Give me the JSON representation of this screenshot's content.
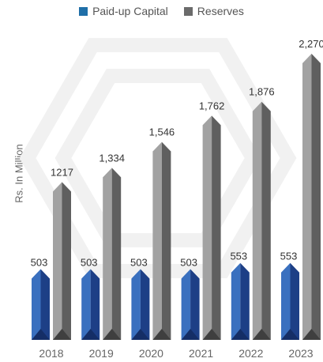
{
  "chart_data": {
    "type": "bar",
    "ylabel": "Rs. In Million",
    "categories": [
      "2018",
      "2019",
      "2020",
      "2021",
      "2022",
      "2023"
    ],
    "series": [
      {
        "name": "Paid-up Capital",
        "values": [
          503,
          503,
          503,
          503,
          553,
          553
        ],
        "labels": [
          "503",
          "503",
          "503",
          "503",
          "553",
          "553"
        ],
        "color": "#2e62a6"
      },
      {
        "name": "Reserves",
        "values": [
          1217,
          1334,
          1546,
          1762,
          1876,
          2270
        ],
        "labels": [
          "1217",
          "1,334",
          "1,546",
          "1,762",
          "1,876",
          "2,270"
        ],
        "color": "#8c8c8c"
      }
    ],
    "legend": "top-center",
    "grid": false
  }
}
